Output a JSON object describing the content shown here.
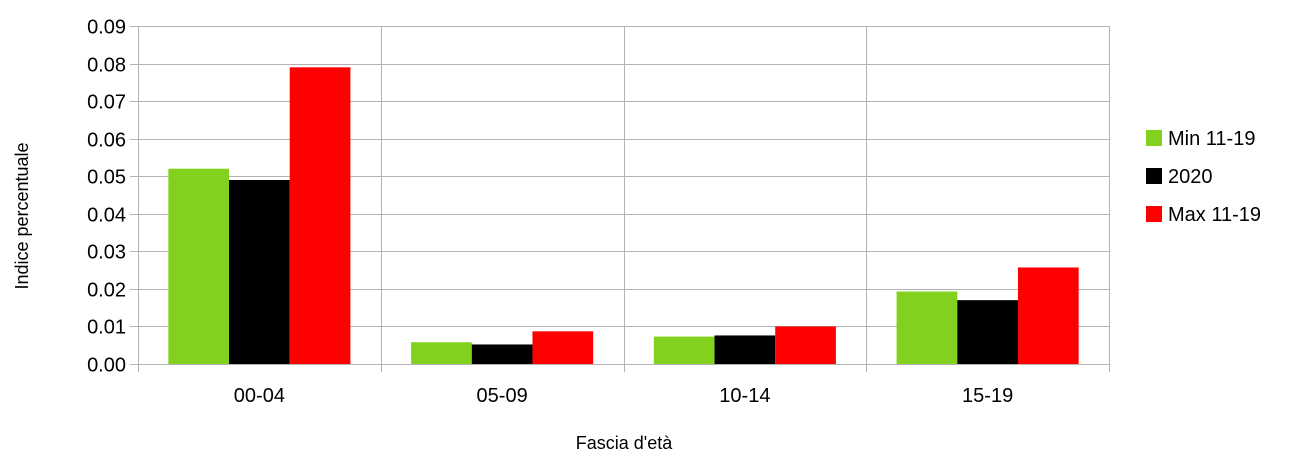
{
  "chart_data": {
    "type": "bar",
    "categories": [
      "00-04",
      "05-09",
      "10-14",
      "15-19"
    ],
    "series": [
      {
        "name": "Min 11-19",
        "color": "#83d11f",
        "values": [
          0.052,
          0.0058,
          0.0073,
          0.0193
        ]
      },
      {
        "name": "2020",
        "color": "#000000",
        "values": [
          0.049,
          0.0052,
          0.0076,
          0.017
        ]
      },
      {
        "name": "Max 11-19",
        "color": "#ff0000",
        "values": [
          0.079,
          0.0087,
          0.01,
          0.0257
        ]
      }
    ],
    "title": "",
    "xlabel": "Fascia d'età",
    "ylabel": "Indice percentuale",
    "ylim": [
      0,
      0.09
    ],
    "yticks": [
      "0.00",
      "0.01",
      "0.02",
      "0.03",
      "0.04",
      "0.05",
      "0.06",
      "0.07",
      "0.08",
      "0.09"
    ],
    "grid": true,
    "legend": "right"
  }
}
